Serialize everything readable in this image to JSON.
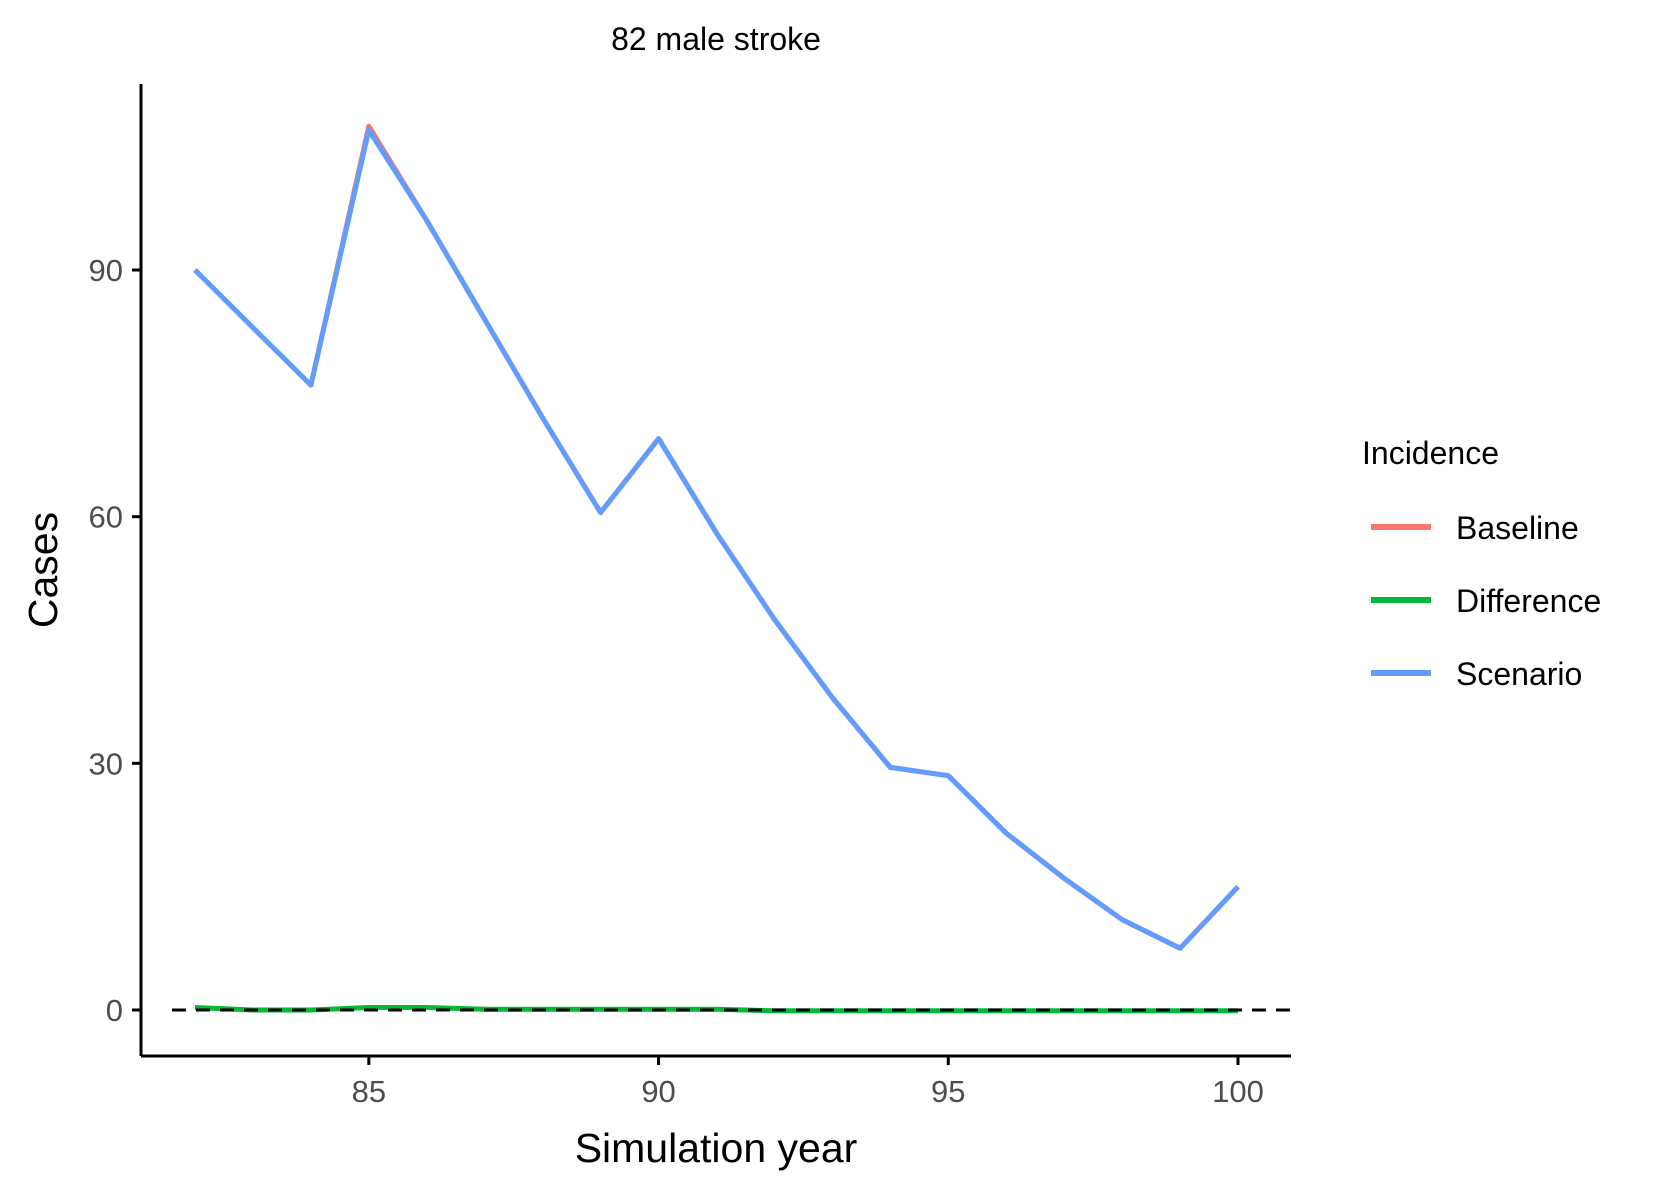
{
  "chart_data": {
    "type": "line",
    "title": "82 male stroke",
    "xlabel": "Simulation year",
    "ylabel": "Cases",
    "xlim": [
      81.5,
      101.5
    ],
    "ylim": [
      -5.5,
      113
    ],
    "x_ticks": [
      85,
      90,
      95,
      100
    ],
    "y_ticks": [
      0,
      30,
      60,
      90
    ],
    "x_tick_labels": [
      "85",
      "90",
      "95",
      "100"
    ],
    "y_tick_labels": [
      "0",
      "30",
      "60",
      "90"
    ],
    "grid": false,
    "reference_line": {
      "y": 0,
      "style": "dashed",
      "color": "#000000"
    },
    "legend": {
      "title": "Incidence",
      "position": "right",
      "entries": [
        "Baseline",
        "Difference",
        "Scenario"
      ]
    },
    "x": [
      82,
      83,
      84,
      85,
      86,
      87,
      88,
      89,
      90,
      91,
      92,
      93,
      94,
      95,
      96,
      97,
      98,
      99,
      100
    ],
    "series": [
      {
        "name": "Baseline",
        "color": "#F8766D",
        "values": [
          90,
          83,
          76,
          107.5,
          96,
          84,
          72,
          60.5,
          69.5,
          58,
          47.5,
          38,
          29.5,
          28.5,
          21.5,
          16,
          11,
          7.5,
          15
        ]
      },
      {
        "name": "Difference",
        "color": "#00BA38",
        "values": [
          0.3,
          0,
          0,
          0.3,
          0.3,
          0.1,
          0.1,
          0.1,
          0.1,
          0.1,
          -0.1,
          -0.1,
          -0.1,
          -0.1,
          -0.1,
          -0.1,
          -0.1,
          -0.1,
          -0.1
        ]
      },
      {
        "name": "Scenario",
        "color": "#619CFF",
        "values": [
          90,
          83,
          76,
          107,
          96,
          84,
          72,
          60.5,
          69.5,
          58,
          47.5,
          38,
          29.5,
          28.5,
          21.5,
          16,
          11,
          7.5,
          15
        ]
      }
    ]
  }
}
